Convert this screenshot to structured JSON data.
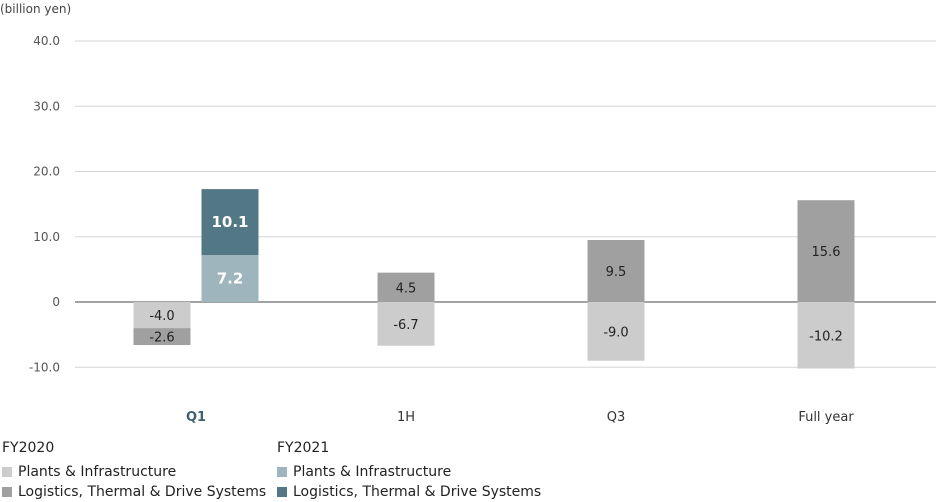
{
  "unit_label": "(billion yen)",
  "chart_data": {
    "type": "bar",
    "stacked": true,
    "diverging": true,
    "categories": [
      "Q1",
      "1H",
      "Q3",
      "Full year"
    ],
    "highlight_category": "Q1",
    "ylim": [
      -10,
      40
    ],
    "yticks": [
      {
        "value": 40,
        "label": "40.0"
      },
      {
        "value": 30,
        "label": "30.0"
      },
      {
        "value": 20,
        "label": "20.0"
      },
      {
        "value": 10,
        "label": "10.0"
      },
      {
        "value": 0,
        "label": "0"
      },
      {
        "value": -10,
        "label": "-10.0"
      }
    ],
    "grid": true,
    "legend_position": "bottom-left",
    "groups": [
      {
        "name": "FY2020",
        "series": [
          {
            "name": "Plants & Infrastructure",
            "color": "#cccccc",
            "label_color": "#222222",
            "values": [
              -4.0,
              -6.7,
              -9.0,
              -10.2
            ],
            "labels": [
              "-4.0",
              "-6.7",
              "-9.0",
              "-10.2"
            ]
          },
          {
            "name": "Logistics, Thermal & Drive Systems",
            "color": "#a0a0a0",
            "label_color": "#222222",
            "values": [
              -2.6,
              4.5,
              9.5,
              15.6
            ],
            "labels": [
              "-2.6",
              "4.5",
              "9.5",
              "15.6"
            ]
          }
        ]
      },
      {
        "name": "FY2021",
        "series": [
          {
            "name": "Plants & Infrastructure",
            "color": "#9fb5bd",
            "label_color": "#ffffff",
            "values": [
              7.2,
              null,
              null,
              null
            ],
            "labels": [
              "7.2",
              "",
              "",
              ""
            ]
          },
          {
            "name": "Logistics, Thermal & Drive Systems",
            "color": "#527785",
            "label_color": "#ffffff",
            "values": [
              10.1,
              null,
              null,
              null
            ],
            "labels": [
              "10.1",
              "",
              "",
              ""
            ]
          }
        ]
      }
    ]
  }
}
